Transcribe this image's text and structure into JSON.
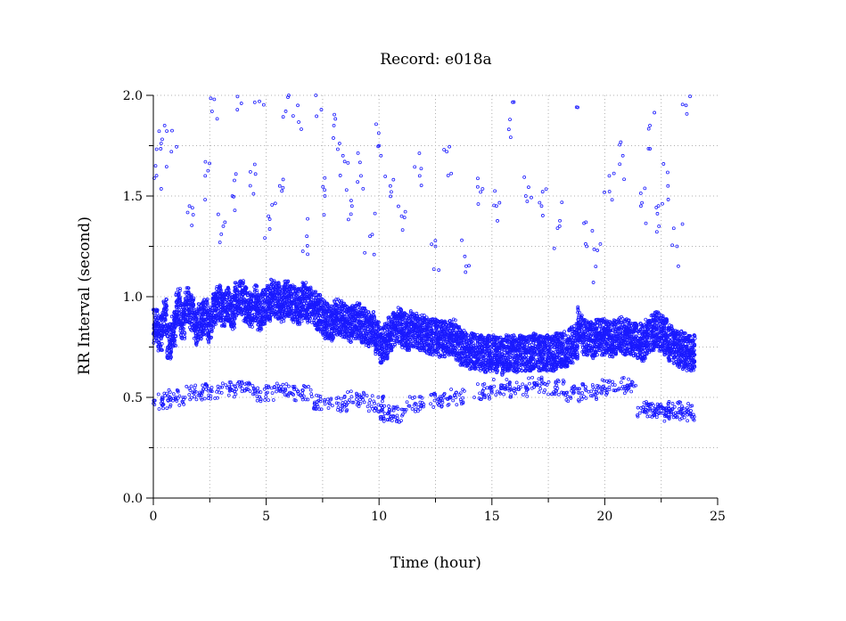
{
  "chart_data": {
    "type": "scatter",
    "title": "Record:  e018a",
    "xlabel": "Time (hour)",
    "ylabel": "RR Interval (second)",
    "xlim": [
      0,
      25
    ],
    "ylim": [
      0,
      2
    ],
    "xticks": [
      0,
      5,
      10,
      15,
      20,
      25
    ],
    "xtick_labels": [
      "0",
      "5",
      "10",
      "15",
      "20",
      "25"
    ],
    "yticks": [
      0.0,
      0.5,
      1.0,
      1.5,
      2.0
    ],
    "ytick_labels": [
      "0.0",
      "0.5",
      "1.0",
      "1.5",
      "2.0"
    ],
    "grid": true,
    "point_color": "#1a1aff",
    "series": [
      {
        "x": [
          0.1,
          0.3,
          0.5,
          0.7,
          0.9,
          1.1,
          1.3,
          1.5,
          1.7,
          1.9,
          2.1,
          2.3,
          2.5,
          2.7,
          2.9,
          3.1,
          3.3,
          3.5,
          3.7,
          3.9,
          4.1,
          4.3,
          4.5,
          4.7,
          4.9,
          5.1,
          5.3,
          5.5,
          5.7,
          5.9,
          6.1,
          6.3,
          6.5,
          6.7,
          6.9,
          7.1,
          7.3,
          7.5,
          7.7,
          7.9,
          8.1,
          8.3,
          8.5,
          8.7,
          8.9,
          9.1,
          9.3,
          9.5,
          9.7,
          9.9,
          10.1,
          10.3,
          10.5,
          10.7,
          10.9,
          11.1,
          11.3,
          11.5,
          11.7,
          11.9,
          12.1,
          12.3,
          12.5,
          12.7,
          12.9,
          13.1,
          13.3,
          13.5,
          13.7,
          13.9,
          14.1,
          14.3,
          14.5,
          14.7,
          14.9,
          15.1,
          15.3,
          15.5,
          15.7,
          15.9,
          16.1,
          16.3,
          16.5,
          16.7,
          16.9,
          17.1,
          17.3,
          17.5,
          17.7,
          17.9,
          18.1,
          18.3,
          18.5,
          18.7,
          18.9,
          19.1,
          19.3,
          19.5,
          19.7,
          19.9,
          20.1,
          20.3,
          20.5,
          20.7,
          20.9,
          21.1,
          21.3,
          21.5,
          21.7,
          21.9,
          22.1,
          22.3,
          22.5,
          22.7,
          22.9,
          23.1,
          23.3,
          23.5,
          23.7,
          23.9
        ],
        "y": [
          0.86,
          0.82,
          0.9,
          0.78,
          0.84,
          0.95,
          0.88,
          0.96,
          0.92,
          0.85,
          0.88,
          0.9,
          0.86,
          0.93,
          0.97,
          0.94,
          0.96,
          0.92,
          0.98,
          0.99,
          0.96,
          0.94,
          0.97,
          0.92,
          0.95,
          0.97,
          1.0,
          0.98,
          0.96,
          0.99,
          0.97,
          0.96,
          0.95,
          0.98,
          0.96,
          0.94,
          0.92,
          0.9,
          0.88,
          0.87,
          0.9,
          0.89,
          0.88,
          0.86,
          0.87,
          0.88,
          0.86,
          0.84,
          0.85,
          0.79,
          0.76,
          0.78,
          0.81,
          0.84,
          0.86,
          0.83,
          0.82,
          0.84,
          0.83,
          0.82,
          0.81,
          0.8,
          0.8,
          0.79,
          0.79,
          0.8,
          0.8,
          0.77,
          0.75,
          0.74,
          0.73,
          0.73,
          0.72,
          0.71,
          0.72,
          0.72,
          0.71,
          0.7,
          0.72,
          0.72,
          0.71,
          0.72,
          0.72,
          0.72,
          0.73,
          0.72,
          0.72,
          0.72,
          0.72,
          0.73,
          0.73,
          0.74,
          0.76,
          0.78,
          0.86,
          0.8,
          0.79,
          0.78,
          0.8,
          0.8,
          0.8,
          0.79,
          0.8,
          0.81,
          0.8,
          0.8,
          0.79,
          0.78,
          0.77,
          0.8,
          0.82,
          0.84,
          0.82,
          0.8,
          0.77,
          0.75,
          0.74,
          0.73,
          0.72,
          0.72
        ]
      },
      {
        "x": [
          0.4,
          1.0,
          1.8,
          2.6,
          3.4,
          4.2,
          5.0,
          5.8,
          6.6,
          7.4,
          8.2,
          9.0,
          9.8,
          10.4,
          10.8,
          11.6,
          12.6,
          13.4,
          14.6,
          15.4,
          16.2,
          17.0,
          17.8,
          18.6,
          19.4,
          20.2,
          21.0,
          21.8,
          22.2,
          22.6,
          23.0,
          23.4,
          23.8
        ],
        "y": [
          0.48,
          0.5,
          0.52,
          0.53,
          0.54,
          0.54,
          0.52,
          0.53,
          0.52,
          0.48,
          0.47,
          0.49,
          0.47,
          0.42,
          0.41,
          0.47,
          0.49,
          0.5,
          0.53,
          0.55,
          0.54,
          0.56,
          0.55,
          0.52,
          0.53,
          0.55,
          0.56,
          0.44,
          0.43,
          0.42,
          0.44,
          0.43,
          0.42
        ]
      },
      {
        "x": [
          0.1,
          0.5,
          0.8,
          1.6,
          2.3,
          2.7,
          3.1,
          3.5,
          3.9,
          4.3,
          4.7,
          5.1,
          5.6,
          6.0,
          6.4,
          6.8,
          7.2,
          7.6,
          8.0,
          8.4,
          8.8,
          9.2,
          9.6,
          10.0,
          10.5,
          11.0,
          11.8,
          12.5,
          13.0,
          13.8,
          14.5,
          15.2,
          15.8,
          16.5,
          17.2,
          18.0,
          18.8,
          19.2,
          19.6,
          20.2,
          20.8,
          21.6,
          22.0,
          22.4,
          22.8,
          23.2,
          23.6
        ],
        "y": [
          1.65,
          1.85,
          1.72,
          1.45,
          1.6,
          1.98,
          1.35,
          1.5,
          1.96,
          1.62,
          1.97,
          1.4,
          1.55,
          2.0,
          1.95,
          1.3,
          2.0,
          1.5,
          1.85,
          1.7,
          1.45,
          1.6,
          1.3,
          1.75,
          1.55,
          1.4,
          1.6,
          1.25,
          1.72,
          1.2,
          1.52,
          1.45,
          1.88,
          1.5,
          1.45,
          1.35,
          1.94,
          1.25,
          1.15,
          1.6,
          1.7,
          1.45,
          1.85,
          1.35,
          1.55,
          1.25,
          1.95
        ]
      }
    ]
  }
}
